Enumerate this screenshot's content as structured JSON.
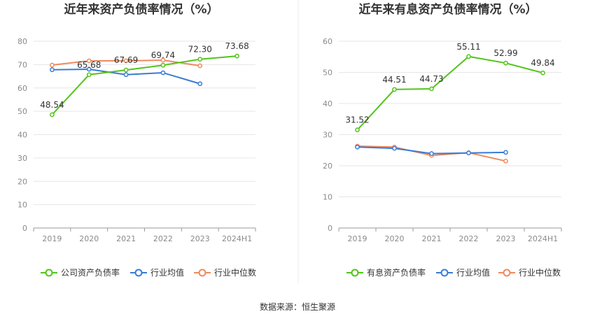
{
  "source_text": "数据来源：恒生聚源",
  "chart_data": [
    {
      "type": "line",
      "title": "近年来资产负债率情况（%）",
      "categories": [
        "2019",
        "2020",
        "2021",
        "2022",
        "2023",
        "2024H1"
      ],
      "ylim": [
        0,
        80
      ],
      "yticks": [
        "0",
        "10",
        "20",
        "30",
        "40",
        "50",
        "60",
        "70",
        "80"
      ],
      "grid": true,
      "legend_position": "bottom",
      "series": [
        {
          "name": "公司资产负债率",
          "color": "#52c41a",
          "values": [
            48.54,
            65.68,
            67.69,
            69.74,
            72.3,
            73.68
          ],
          "labels": [
            "48.54",
            "65.68",
            "67.69",
            "69.74",
            "72.30",
            "73.68"
          ]
        },
        {
          "name": "行业均值",
          "color": "#3a7bd5",
          "values": [
            67.8,
            68.0,
            65.7,
            66.5,
            61.8,
            null
          ],
          "labels": []
        },
        {
          "name": "行业中位数",
          "color": "#ee8a5e",
          "values": [
            69.8,
            71.6,
            71.6,
            71.9,
            69.5,
            null
          ],
          "labels": []
        }
      ]
    },
    {
      "type": "line",
      "title": "近年来有息资产负债率情况（%）",
      "categories": [
        "2019",
        "2020",
        "2021",
        "2022",
        "2023",
        "2024H1"
      ],
      "ylim": [
        0,
        60
      ],
      "yticks": [
        "0",
        "10",
        "20",
        "30",
        "40",
        "50",
        "60"
      ],
      "grid": true,
      "legend_position": "bottom",
      "series": [
        {
          "name": "有息资产负债率",
          "color": "#52c41a",
          "values": [
            31.52,
            44.51,
            44.73,
            55.11,
            52.99,
            49.84
          ],
          "labels": [
            "31.52",
            "44.51",
            "44.73",
            "55.11",
            "52.99",
            "49.84"
          ]
        },
        {
          "name": "行业均值",
          "color": "#3a7bd5",
          "values": [
            26.0,
            25.6,
            23.9,
            24.1,
            24.3,
            null
          ],
          "labels": []
        },
        {
          "name": "行业中位数",
          "color": "#ee8a5e",
          "values": [
            26.3,
            26.0,
            23.3,
            24.2,
            21.5,
            null
          ],
          "labels": []
        }
      ]
    }
  ]
}
